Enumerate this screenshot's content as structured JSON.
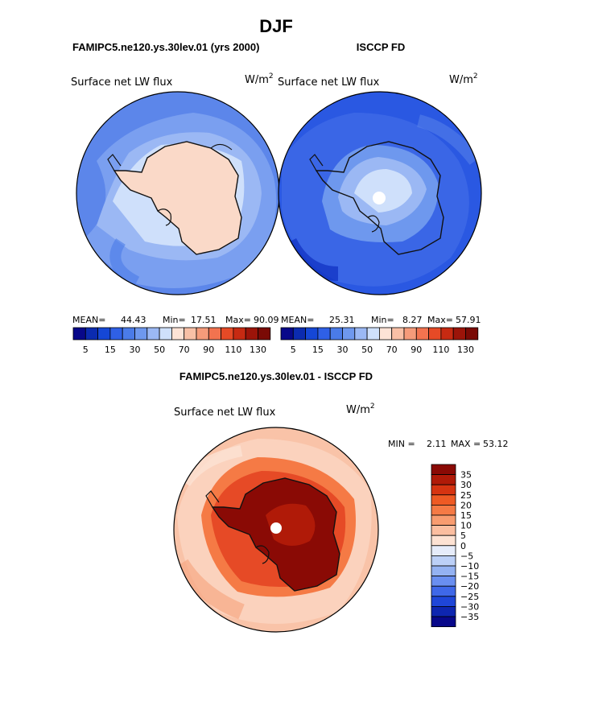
{
  "page": {
    "title": "DJF"
  },
  "top_left": {
    "header": "FAMIPC5.ne120.ys.30lev.01 (yrs 2000)",
    "variable": "Surface net LW flux",
    "units_base": "W/m",
    "units_exp": "2",
    "stats": {
      "mean_label": "MEAN=",
      "mean": "44.43",
      "min_label": "Min=",
      "min": "17.51",
      "max_label": "Max=",
      "max": "90.09"
    }
  },
  "top_right": {
    "header": "ISCCP FD",
    "variable": "Surface net LW flux",
    "units_base": "W/m",
    "units_exp": "2",
    "stats": {
      "mean_label": "MEAN=",
      "mean": "25.31",
      "min_label": "Min=",
      "min": "8.27",
      "max_label": "Max=",
      "max": "57.91"
    }
  },
  "abs_colorbar": {
    "colors": [
      "#08088a",
      "#0b2bb0",
      "#1547d6",
      "#2f60e6",
      "#4a7be8",
      "#6e98ee",
      "#9bb8f4",
      "#cfe0fb",
      "#fde3d6",
      "#f8c0a6",
      "#f59b7a",
      "#f2734f",
      "#e64a26",
      "#c72a12",
      "#9c1409",
      "#7a0a05"
    ],
    "labels": [
      "5",
      "15",
      "30",
      "50",
      "70",
      "90",
      "110",
      "130"
    ]
  },
  "bottom": {
    "header": "FAMIPC5.ne120.ys.30lev.01 - ISCCP FD",
    "variable": "Surface net LW flux",
    "units_base": "W/m",
    "units_exp": "2",
    "minmax": {
      "min_label": "MIN =",
      "min": "2.11",
      "max_label": "MAX =",
      "max": "53.12"
    }
  },
  "diff_colorbar": {
    "colors": [
      "#8a0a05",
      "#b01a08",
      "#d63411",
      "#ee5a24",
      "#f57a45",
      "#f89c70",
      "#fbbea0",
      "#fde2d3",
      "#e6ecfa",
      "#bcd0f7",
      "#94b2f2",
      "#6a8ff0",
      "#3f68e8",
      "#1f46d8",
      "#0e26b0",
      "#08088a"
    ],
    "labels": [
      "35",
      "30",
      "25",
      "20",
      "15",
      "10",
      "5",
      "0",
      "−5",
      "−10",
      "−15",
      "−20",
      "−25",
      "−30",
      "−35"
    ]
  },
  "colors": {
    "map_outline": "#000000",
    "coast": "#111111",
    "land_model": "#fad9c8",
    "ocean_model": "#88aaf2",
    "ocean_obs": "#2f5ee6",
    "land_obs": "#cfe0fb",
    "diff_bg": "#f9c3a8",
    "diff_core": "#8a0a05"
  }
}
